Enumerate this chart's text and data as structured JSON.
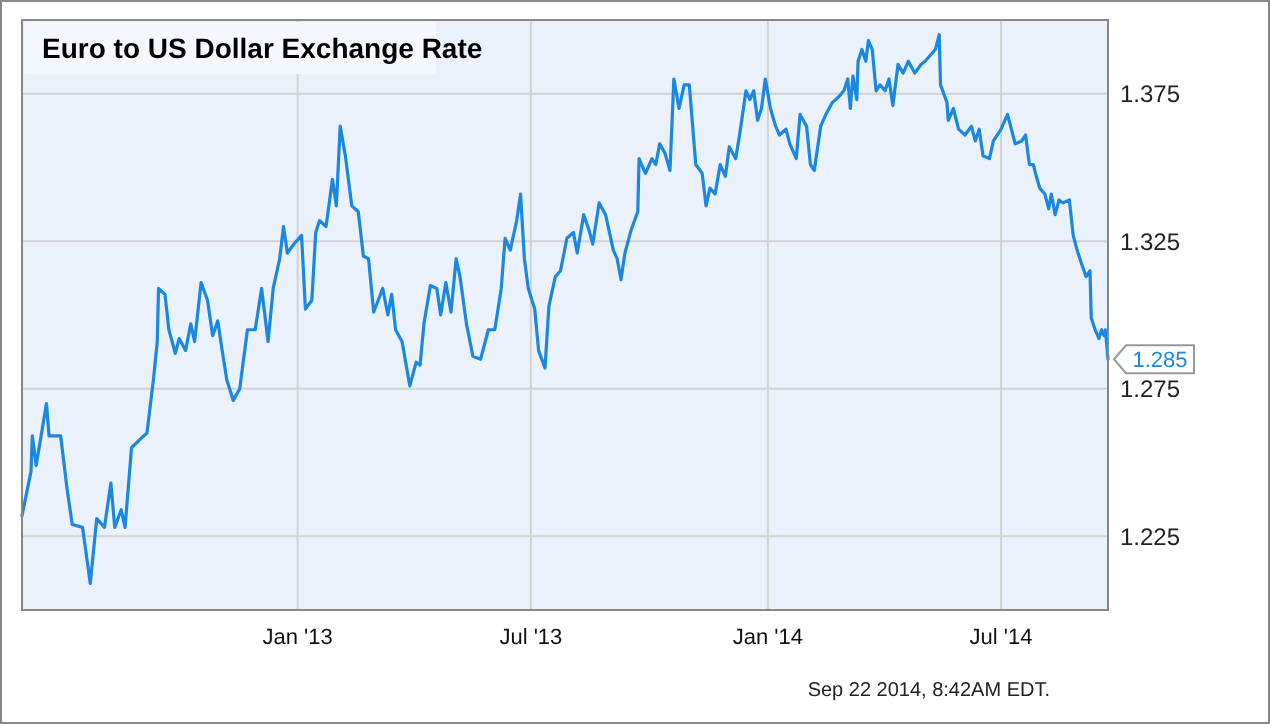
{
  "chart_data": {
    "type": "line",
    "title": "Euro to US Dollar Exchange Rate",
    "x": [
      "2012-06-01",
      "2012-06-08",
      "2012-06-09",
      "2012-06-12",
      "2012-06-20",
      "2012-06-22",
      "2012-07-01",
      "2012-07-06",
      "2012-07-10",
      "2012-07-18",
      "2012-07-24",
      "2012-07-29",
      "2012-08-04",
      "2012-08-09",
      "2012-08-12",
      "2012-08-17",
      "2012-08-20",
      "2012-08-25",
      "2012-09-01",
      "2012-09-06",
      "2012-09-11",
      "2012-09-14",
      "2012-09-15",
      "2012-09-20",
      "2012-09-23",
      "2012-09-28",
      "2012-10-01",
      "2012-10-06",
      "2012-10-10",
      "2012-10-13",
      "2012-10-18",
      "2012-10-23",
      "2012-10-27",
      "2012-10-31",
      "2012-11-03",
      "2012-11-07",
      "2012-11-12",
      "2012-11-17",
      "2012-11-23",
      "2012-11-29",
      "2012-12-04",
      "2012-12-09",
      "2012-12-13",
      "2012-12-18",
      "2012-12-21",
      "2012-12-24",
      "2012-12-29",
      "2013-01-04",
      "2013-01-07",
      "2013-01-12",
      "2013-01-15",
      "2013-01-18",
      "2013-01-23",
      "2013-01-28",
      "2013-01-31",
      "2013-02-03",
      "2013-02-07",
      "2013-02-12",
      "2013-02-17",
      "2013-02-21",
      "2013-02-25",
      "2013-03-01",
      "2013-03-08",
      "2013-03-12",
      "2013-03-15",
      "2013-03-18",
      "2013-03-23",
      "2013-03-29",
      "2013-04-03",
      "2013-04-06",
      "2013-04-09",
      "2013-04-14",
      "2013-04-19",
      "2013-04-22",
      "2013-04-26",
      "2013-04-30",
      "2013-05-04",
      "2013-05-07",
      "2013-05-12",
      "2013-05-17",
      "2013-05-23",
      "2013-05-29",
      "2013-06-03",
      "2013-06-08",
      "2013-06-11",
      "2013-06-15",
      "2013-06-20",
      "2013-06-23",
      "2013-06-26",
      "2013-06-29",
      "2013-07-04",
      "2013-07-07",
      "2013-07-12",
      "2013-07-15",
      "2013-07-20",
      "2013-07-24",
      "2013-07-29",
      "2013-08-03",
      "2013-08-06",
      "2013-08-11",
      "2013-08-15",
      "2013-08-18",
      "2013-08-23",
      "2013-08-28",
      "2013-09-03",
      "2013-09-06",
      "2013-09-09",
      "2013-09-12",
      "2013-09-17",
      "2013-09-22",
      "2013-09-23",
      "2013-09-28",
      "2013-10-03",
      "2013-10-06",
      "2013-10-09",
      "2013-10-13",
      "2013-10-17",
      "2013-10-20",
      "2013-10-24",
      "2013-10-28",
      "2013-11-01",
      "2013-11-06",
      "2013-11-11",
      "2013-11-14",
      "2013-11-17",
      "2013-11-21",
      "2013-11-25",
      "2013-11-29",
      "2013-12-02",
      "2013-12-07",
      "2013-12-10",
      "2013-12-15",
      "2013-12-18",
      "2013-12-21",
      "2013-12-24",
      "2013-12-27",
      "2013-12-30",
      "2014-01-03",
      "2014-01-07",
      "2014-01-10",
      "2014-01-15",
      "2014-01-18",
      "2014-01-23",
      "2014-01-26",
      "2014-01-31",
      "2014-02-03",
      "2014-02-06",
      "2014-02-11",
      "2014-02-15",
      "2014-02-20",
      "2014-02-25",
      "2014-03-01",
      "2014-03-04",
      "2014-03-06",
      "2014-03-08",
      "2014-03-11",
      "2014-03-12",
      "2014-03-15",
      "2014-03-18",
      "2014-03-20",
      "2014-03-23",
      "2014-03-26",
      "2014-03-29",
      "2014-04-02",
      "2014-04-05",
      "2014-04-08",
      "2014-04-12",
      "2014-04-16",
      "2014-04-20",
      "2014-04-25",
      "2014-04-30",
      "2014-05-03",
      "2014-05-11",
      "2014-05-14",
      "2014-05-15",
      "2014-05-20",
      "2014-05-21",
      "2014-05-25",
      "2014-05-29",
      "2014-06-03",
      "2014-06-08",
      "2014-06-11",
      "2014-06-14",
      "2014-06-17",
      "2014-06-22",
      "2014-06-25",
      "2014-06-28",
      "2014-07-01",
      "2014-07-06",
      "2014-07-09",
      "2014-07-12",
      "2014-07-17",
      "2014-07-20",
      "2014-07-23",
      "2014-07-26",
      "2014-07-29",
      "2014-07-31",
      "2014-08-04",
      "2014-08-07",
      "2014-08-09",
      "2014-08-12",
      "2014-08-15",
      "2014-08-18",
      "2014-08-23",
      "2014-08-26",
      "2014-08-29",
      "2014-09-01",
      "2014-09-05",
      "2014-09-08",
      "2014-09-09",
      "2014-09-12",
      "2014-09-15",
      "2014-09-17",
      "2014-09-19",
      "2014-09-20",
      "2014-09-22"
    ],
    "series": [
      {
        "color": "#1a87e0",
        "values": [
          1.232,
          1.247,
          1.259,
          1.249,
          1.27,
          1.259,
          1.259,
          1.241,
          1.229,
          1.228,
          1.209,
          1.231,
          1.228,
          1.243,
          1.228,
          1.234,
          1.228,
          1.255,
          1.258,
          1.26,
          1.278,
          1.291,
          1.309,
          1.307,
          1.295,
          1.287,
          1.292,
          1.288,
          1.297,
          1.291,
          1.311,
          1.305,
          1.293,
          1.298,
          1.289,
          1.278,
          1.271,
          1.275,
          1.295,
          1.295,
          1.309,
          1.291,
          1.309,
          1.319,
          1.33,
          1.321,
          1.324,
          1.327,
          1.302,
          1.305,
          1.328,
          1.332,
          1.33,
          1.346,
          1.337,
          1.364,
          1.354,
          1.337,
          1.335,
          1.32,
          1.319,
          1.301,
          1.309,
          1.3,
          1.307,
          1.295,
          1.291,
          1.276,
          1.284,
          1.283,
          1.297,
          1.31,
          1.309,
          1.3,
          1.311,
          1.301,
          1.319,
          1.313,
          1.297,
          1.286,
          1.285,
          1.295,
          1.295,
          1.309,
          1.326,
          1.322,
          1.332,
          1.341,
          1.319,
          1.309,
          1.302,
          1.288,
          1.282,
          1.303,
          1.313,
          1.315,
          1.326,
          1.328,
          1.321,
          1.334,
          1.329,
          1.324,
          1.338,
          1.334,
          1.322,
          1.319,
          1.312,
          1.321,
          1.329,
          1.335,
          1.353,
          1.348,
          1.353,
          1.351,
          1.358,
          1.355,
          1.349,
          1.38,
          1.37,
          1.378,
          1.378,
          1.351,
          1.348,
          1.337,
          1.343,
          1.341,
          1.351,
          1.347,
          1.357,
          1.353,
          1.361,
          1.376,
          1.373,
          1.376,
          1.366,
          1.37,
          1.38,
          1.37,
          1.364,
          1.361,
          1.363,
          1.358,
          1.353,
          1.368,
          1.364,
          1.351,
          1.349,
          1.364,
          1.368,
          1.372,
          1.374,
          1.376,
          1.38,
          1.37,
          1.381,
          1.373,
          1.386,
          1.39,
          1.386,
          1.393,
          1.39,
          1.376,
          1.378,
          1.376,
          1.38,
          1.371,
          1.385,
          1.382,
          1.386,
          1.382,
          1.385,
          1.386,
          1.39,
          1.395,
          1.378,
          1.372,
          1.366,
          1.37,
          1.363,
          1.361,
          1.364,
          1.359,
          1.363,
          1.354,
          1.353,
          1.359,
          1.361,
          1.363,
          1.368,
          1.363,
          1.358,
          1.359,
          1.361,
          1.351,
          1.351,
          1.346,
          1.343,
          1.341,
          1.336,
          1.341,
          1.334,
          1.339,
          1.338,
          1.339,
          1.327,
          1.322,
          1.318,
          1.313,
          1.315,
          1.299,
          1.295,
          1.292,
          1.295,
          1.293,
          1.295,
          1.285
        ]
      }
    ],
    "xlim": [
      "2012-06-01",
      "2014-09-22"
    ],
    "xticks": [
      {
        "value": "2013-01-01",
        "label": "Jan '13"
      },
      {
        "value": "2013-07-01",
        "label": "Jul '13"
      },
      {
        "value": "2014-01-01",
        "label": "Jan '14"
      },
      {
        "value": "2014-07-01",
        "label": "Jul '14"
      }
    ],
    "ylim": [
      1.2,
      1.4
    ],
    "yticks": [
      1.225,
      1.275,
      1.325,
      1.375
    ],
    "grid": true,
    "marker": "none",
    "line_style": "solid",
    "annotations": [
      {
        "text": "1.285",
        "x": "2014-09-22",
        "y": 1.285
      },
      "Sep 22 2014, 8:42AM EDT."
    ]
  }
}
